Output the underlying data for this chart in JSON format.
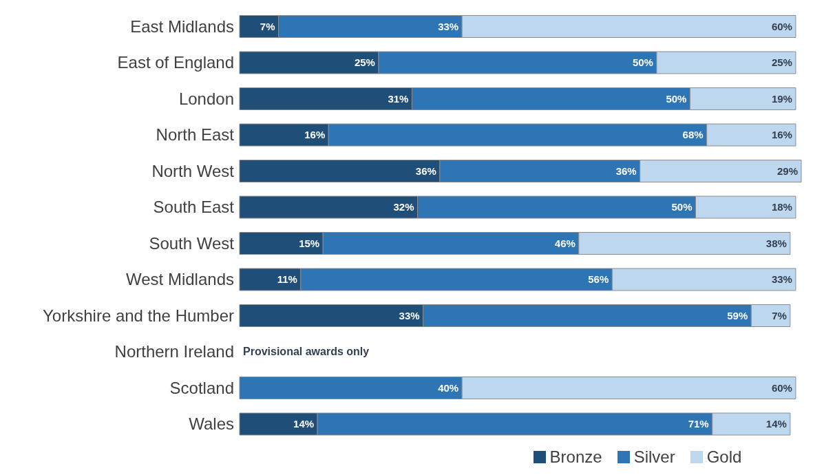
{
  "chart_data": {
    "type": "bar",
    "orientation": "horizontal",
    "stacked": true,
    "categories": [
      "East Midlands",
      "East of England",
      "London",
      "North East",
      "North West",
      "South East",
      "South West",
      "West Midlands",
      "Yorkshire and the Humber",
      "Northern Ireland",
      "Scotland",
      "Wales"
    ],
    "series": [
      {
        "name": "Bronze",
        "color": "#1f4e79",
        "values": [
          7,
          25,
          31,
          16,
          36,
          32,
          15,
          11,
          33,
          null,
          null,
          14
        ],
        "value_labels": [
          "7%",
          "25%",
          "31%",
          "16%",
          "36%",
          "32%",
          "15%",
          "11%",
          "33%",
          null,
          null,
          "14%"
        ]
      },
      {
        "name": "Silver",
        "color": "#2e75b6",
        "values": [
          33,
          50,
          50,
          68,
          36,
          50,
          46,
          56,
          59,
          null,
          40,
          71
        ],
        "value_labels": [
          "33%",
          "50%",
          "50%",
          "68%",
          "36%",
          "50%",
          "46%",
          "56%",
          "59%",
          null,
          "40%",
          "71%"
        ]
      },
      {
        "name": "Gold",
        "color": "#bdd7ee",
        "values": [
          60,
          25,
          19,
          16,
          29,
          18,
          38,
          33,
          7,
          null,
          60,
          14
        ],
        "value_labels": [
          "60%",
          "25%",
          "19%",
          "16%",
          "29%",
          "18%",
          "38%",
          "33%",
          "7%",
          null,
          "60%",
          "14%"
        ]
      }
    ],
    "legend": "bottom",
    "grid": false,
    "tick_labels": "y",
    "annotations": [
      "Provisional awards only"
    ]
  }
}
